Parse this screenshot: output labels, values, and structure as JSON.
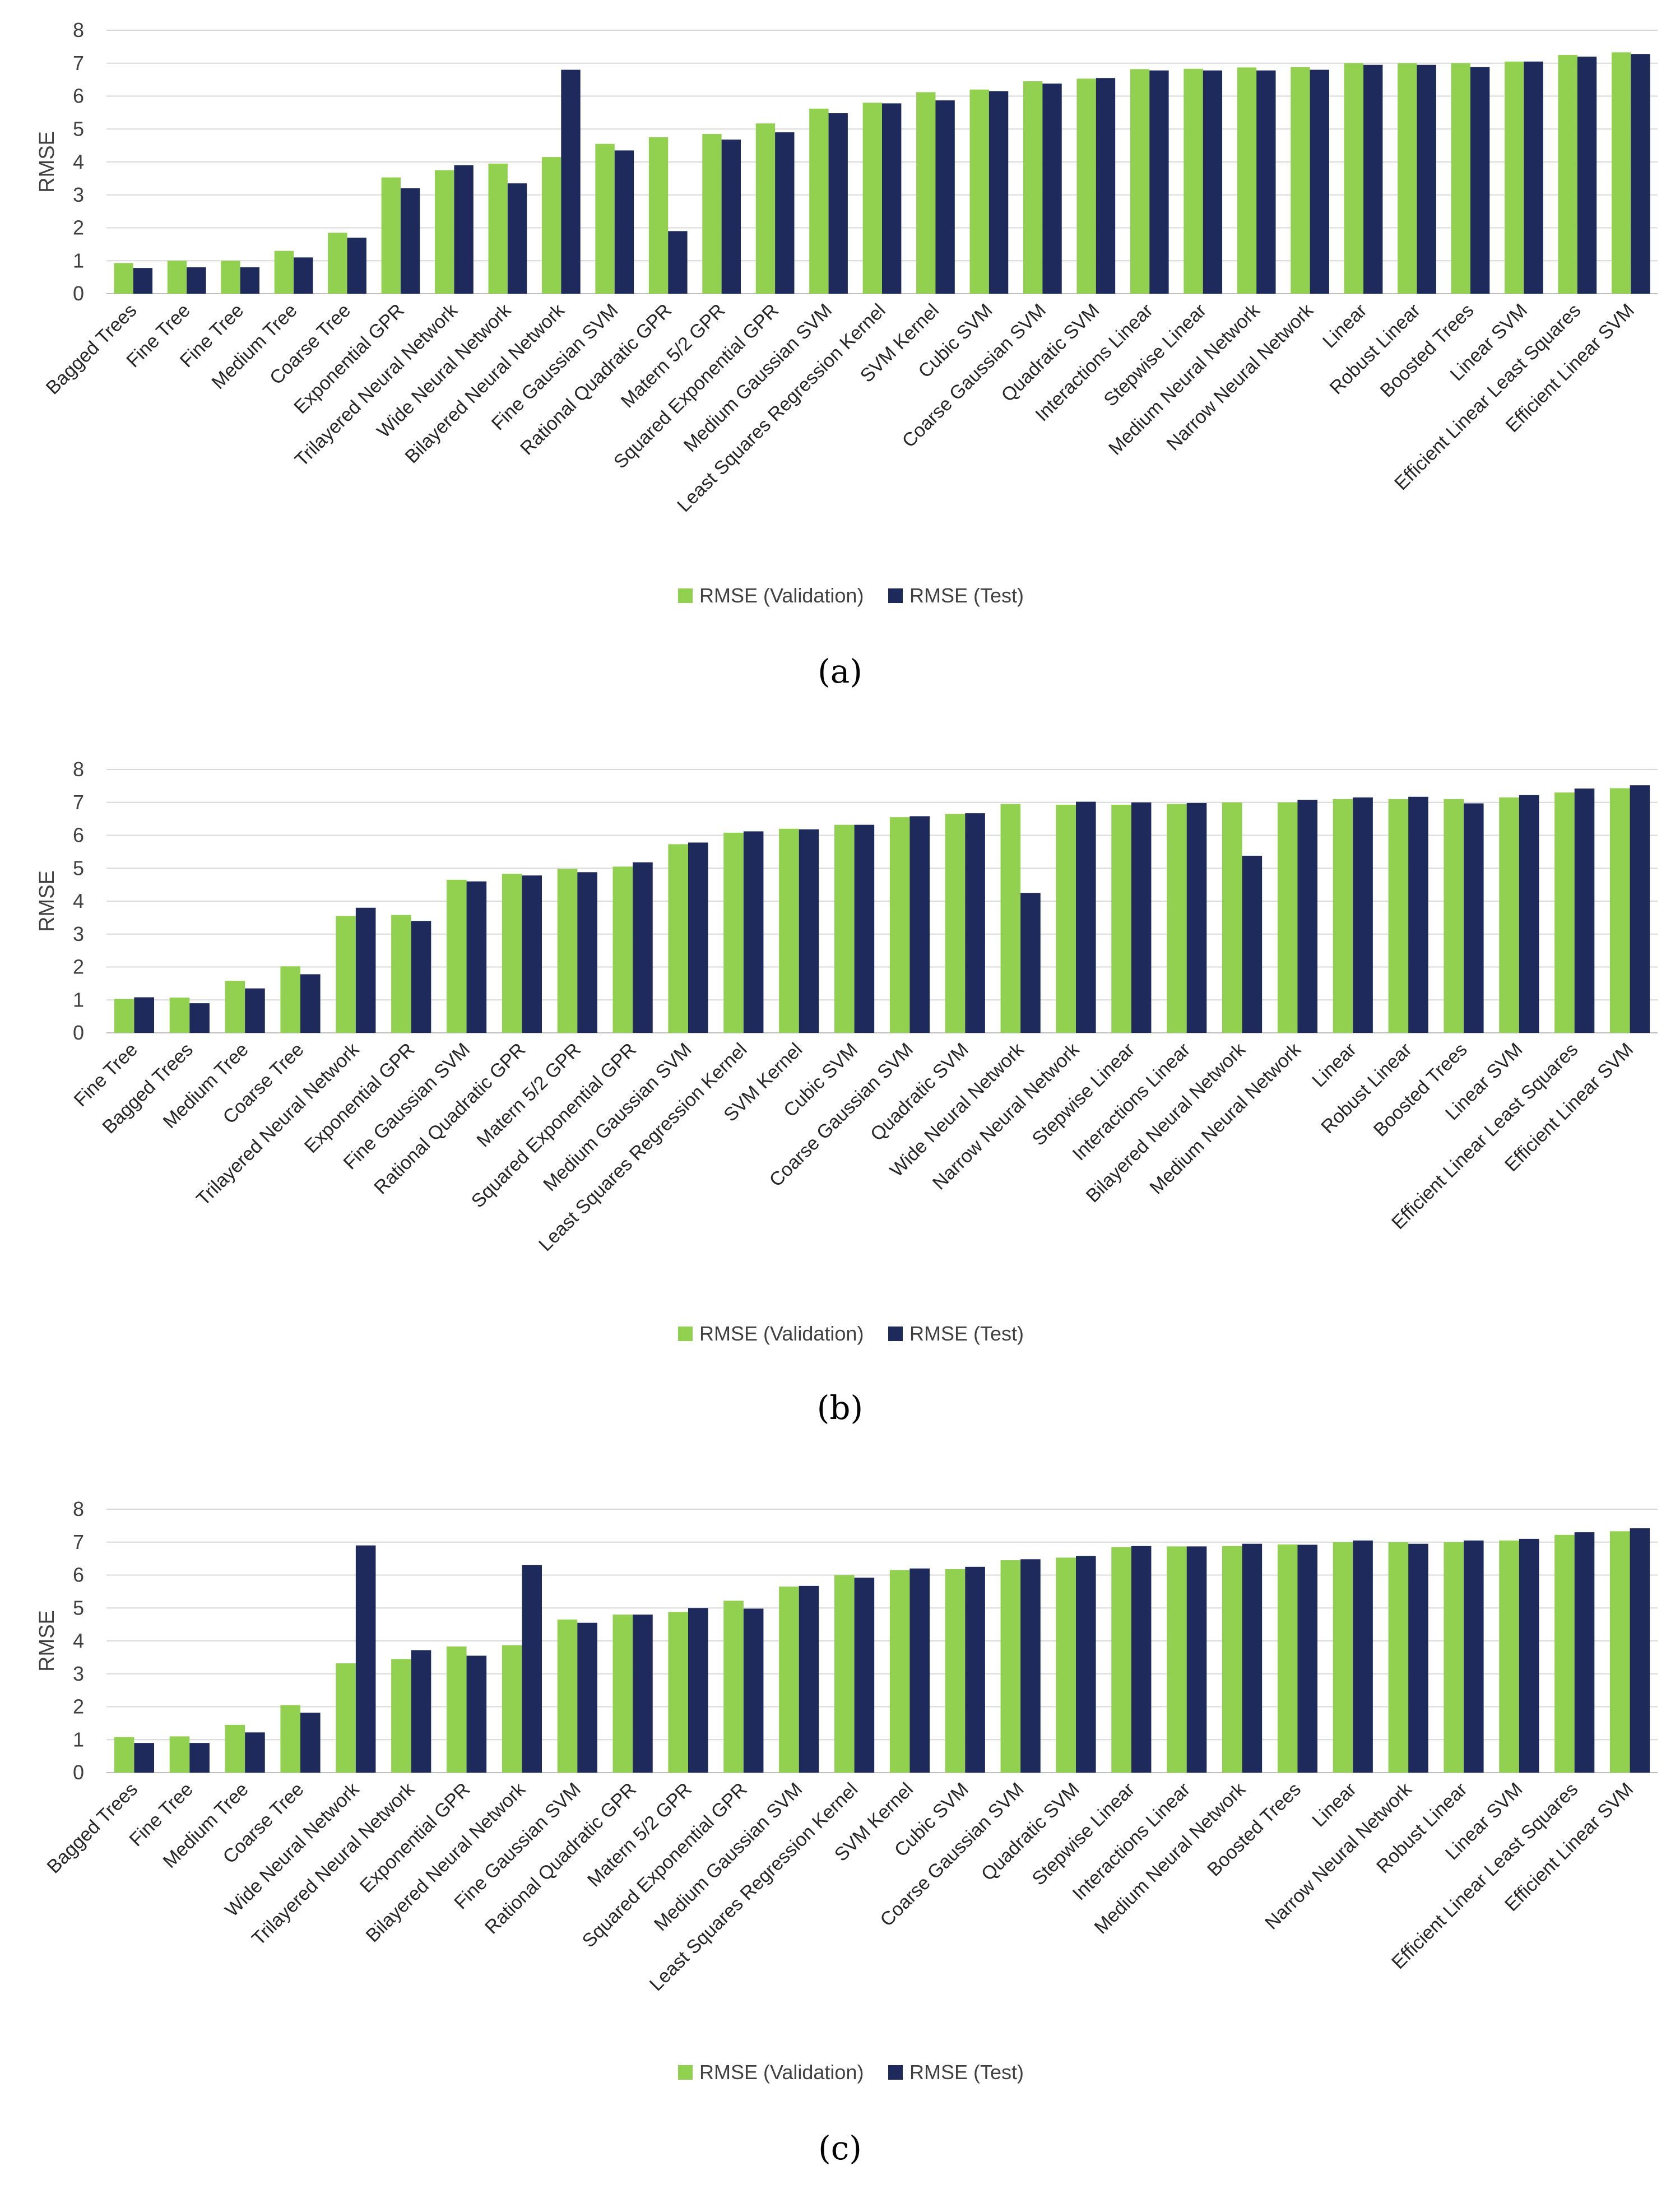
{
  "colors": {
    "validation": "#92d050",
    "test": "#1f2a5c"
  },
  "chart_data": [
    {
      "type": "bar",
      "panel": "(a)",
      "ylabel": "RMSE",
      "ylim": [
        0,
        8
      ],
      "yticks": [
        "0",
        "1",
        "2",
        "3",
        "4",
        "5",
        "6",
        "7",
        "8"
      ],
      "grid": true,
      "legend": "bottom",
      "categories": [
        "Bagged Trees",
        "Fine Tree",
        "Fine Tree",
        "Medium Tree",
        "Coarse Tree",
        "Exponential GPR",
        "Trilayered Neural Network",
        "Wide Neural Network",
        "Bilayered Neural Network",
        "Fine Gaussian SVM",
        "Rational Quadratic GPR",
        "Matern 5/2 GPR",
        "Squared Exponential GPR",
        "Medium Gaussian SVM",
        "Least Squares Regression Kernel",
        "SVM Kernel",
        "Cubic SVM",
        "Coarse Gaussian SVM",
        "Quadratic SVM",
        "Interactions Linear",
        "Stepwise Linear",
        "Medium Neural Network",
        "Narrow Neural Network",
        "Linear",
        "Robust Linear",
        "Boosted Trees",
        "Linear SVM",
        "Efficient Linear Least Squares",
        "Efficient Linear SVM"
      ],
      "series": [
        {
          "name": "RMSE (Validation)",
          "values": [
            0.93,
            1.0,
            1.0,
            1.3,
            1.85,
            3.53,
            3.75,
            3.95,
            4.15,
            4.55,
            4.75,
            4.85,
            5.17,
            5.62,
            5.8,
            6.12,
            6.2,
            6.45,
            6.53,
            6.82,
            6.83,
            6.87,
            6.88,
            7.0,
            7.0,
            7.0,
            7.05,
            7.25,
            7.33
          ]
        },
        {
          "name": "RMSE (Test)",
          "values": [
            0.78,
            0.8,
            0.8,
            1.1,
            1.7,
            3.2,
            3.9,
            3.35,
            6.8,
            4.35,
            1.9,
            4.68,
            4.9,
            5.48,
            5.78,
            5.87,
            6.15,
            6.38,
            6.55,
            6.78,
            6.78,
            6.78,
            6.8,
            6.95,
            6.95,
            6.88,
            7.05,
            7.2,
            7.28
          ]
        }
      ]
    },
    {
      "type": "bar",
      "panel": "(b)",
      "ylabel": "RMSE",
      "ylim": [
        0,
        8
      ],
      "yticks": [
        "0",
        "1",
        "2",
        "3",
        "4",
        "5",
        "6",
        "7",
        "8"
      ],
      "grid": true,
      "legend": "bottom",
      "categories": [
        "Fine Tree",
        "Bagged Trees",
        "Medium Tree",
        "Coarse Tree",
        "Trilayered Neural Network",
        "Exponential GPR",
        "Fine Gaussian SVM",
        "Rational Quadratic GPR",
        "Matern 5/2 GPR",
        "Squared Exponential GPR",
        "Medium Gaussian SVM",
        "Least Squares Regression Kernel",
        "SVM Kernel",
        "Cubic SVM",
        "Coarse Gaussian SVM",
        "Quadratic SVM",
        "Wide Neural Network",
        "Narrow Neural Network",
        "Stepwise Linear",
        "Interactions Linear",
        "Bilayered Neural Network",
        "Medium Neural Network",
        "Linear",
        "Robust Linear",
        "Boosted Trees",
        "Linear SVM",
        "Efficient Linear Least Squares",
        "Efficient Linear SVM"
      ],
      "series": [
        {
          "name": "RMSE (Validation)",
          "values": [
            1.03,
            1.07,
            1.58,
            2.02,
            3.55,
            3.58,
            4.65,
            4.83,
            4.98,
            5.05,
            5.73,
            6.08,
            6.2,
            6.32,
            6.55,
            6.65,
            6.95,
            6.93,
            6.93,
            6.95,
            7.0,
            7.0,
            7.1,
            7.1,
            7.1,
            7.15,
            7.3,
            7.43
          ]
        },
        {
          "name": "RMSE (Test)",
          "values": [
            1.08,
            0.9,
            1.35,
            1.78,
            3.8,
            3.4,
            4.6,
            4.78,
            4.88,
            5.18,
            5.78,
            6.12,
            6.18,
            6.32,
            6.58,
            6.67,
            4.25,
            7.02,
            7.0,
            6.98,
            5.38,
            7.08,
            7.15,
            7.17,
            6.97,
            7.22,
            7.42,
            7.52
          ]
        }
      ]
    },
    {
      "type": "bar",
      "panel": "(c)",
      "ylabel": "RMSE",
      "ylim": [
        0,
        8
      ],
      "yticks": [
        "0",
        "1",
        "2",
        "3",
        "4",
        "5",
        "6",
        "7",
        "8"
      ],
      "grid": true,
      "legend": "bottom",
      "categories": [
        "Bagged Trees",
        "Fine Tree",
        "Medium Tree",
        "Coarse Tree",
        "Wide Neural Network",
        "Trilayered Neural Network",
        "Exponential GPR",
        "Bilayered Neural Network",
        "Fine Gaussian SVM",
        "Rational Quadratic GPR",
        "Matern 5/2 GPR",
        "Squared Exponential GPR",
        "Medium Gaussian SVM",
        "Least Squares Regression Kernel",
        "SVM Kernel",
        "Cubic SVM",
        "Coarse Gaussian SVM",
        "Quadratic SVM",
        "Stepwise Linear",
        "Interactions Linear",
        "Medium Neural Network",
        "Boosted Trees",
        "Linear",
        "Narrow Neural Network",
        "Robust Linear",
        "Linear SVM",
        "Efficient Linear Least Squares",
        "Efficient Linear SVM"
      ],
      "series": [
        {
          "name": "RMSE (Validation)",
          "values": [
            1.08,
            1.1,
            1.45,
            2.05,
            3.32,
            3.45,
            3.83,
            3.87,
            4.65,
            4.8,
            4.88,
            5.22,
            5.65,
            6.0,
            6.15,
            6.18,
            6.45,
            6.53,
            6.85,
            6.87,
            6.88,
            6.93,
            7.0,
            7.0,
            7.0,
            7.05,
            7.22,
            7.33
          ]
        },
        {
          "name": "RMSE (Test)",
          "values": [
            0.9,
            0.9,
            1.22,
            1.82,
            6.9,
            3.72,
            3.55,
            6.3,
            4.55,
            4.8,
            5.0,
            4.98,
            5.67,
            5.92,
            6.2,
            6.25,
            6.48,
            6.58,
            6.88,
            6.87,
            6.95,
            6.92,
            7.05,
            6.95,
            7.05,
            7.1,
            7.3,
            7.42
          ]
        }
      ]
    }
  ]
}
